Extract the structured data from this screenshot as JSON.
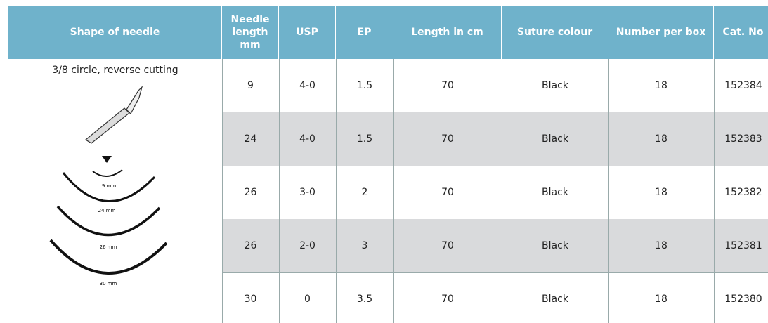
{
  "table": {
    "header": [
      "Shape of needle",
      "Needle length mm",
      "USP",
      "EP",
      "Length in cm",
      "Suture colour",
      "Number per box",
      "Cat. No"
    ],
    "shape": {
      "label": "3/8 circle, reverse cutting",
      "sizes": [
        "9 mm",
        "24 mm",
        "26 mm",
        "30 mm"
      ]
    },
    "rows": [
      [
        "9",
        "4-0",
        "1.5",
        "70",
        "Black",
        "18",
        "152384"
      ],
      [
        "24",
        "4-0",
        "1.5",
        "70",
        "Black",
        "18",
        "152383"
      ],
      [
        "26",
        "3-0",
        "2",
        "70",
        "Black",
        "18",
        "152382"
      ],
      [
        "26",
        "2-0",
        "3",
        "70",
        "Black",
        "18",
        "152381"
      ],
      [
        "30",
        "0",
        "3.5",
        "70",
        "Black",
        "18",
        "152380"
      ]
    ]
  }
}
